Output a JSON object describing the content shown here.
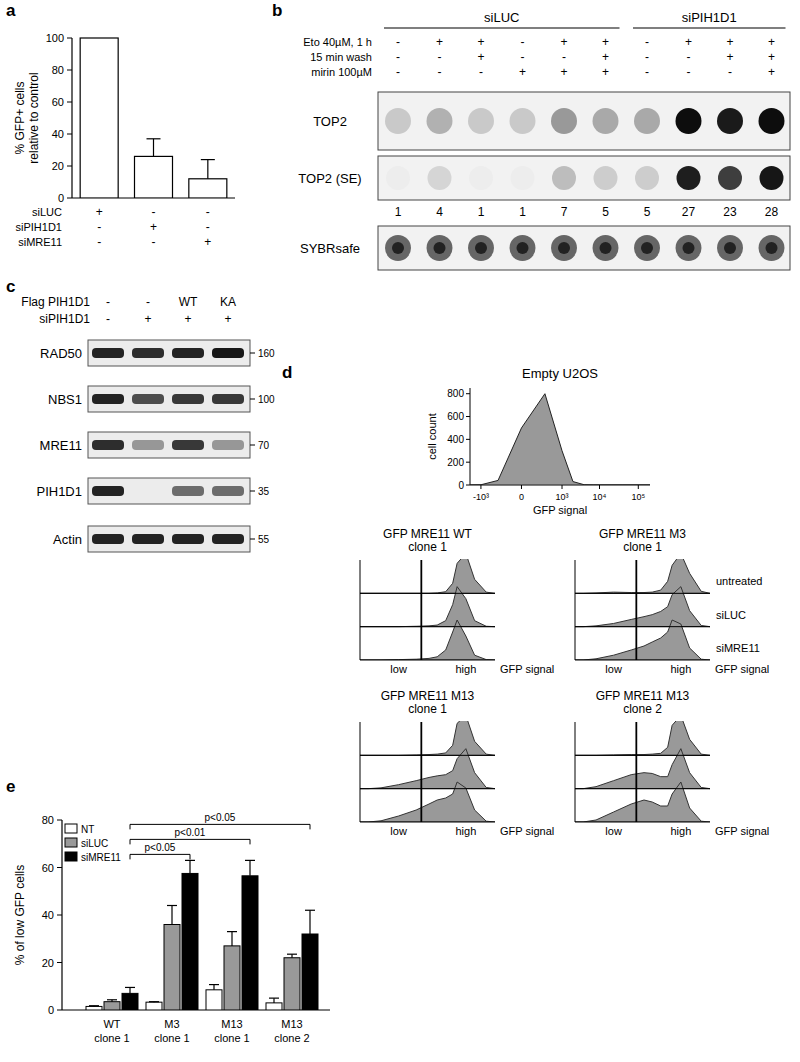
{
  "chart_data": [
    {
      "type": "bar",
      "panel": "a",
      "y_label": [
        "% GFP+ cells",
        "relative to control"
      ],
      "categories": [
        null,
        null,
        null
      ],
      "conditions": [
        {
          "label": "siLUC",
          "signs": [
            "+",
            "-",
            "-"
          ]
        },
        {
          "label": "siPIH1D1",
          "signs": [
            "-",
            "+",
            "-"
          ]
        },
        {
          "label": "siMRE11",
          "signs": [
            "-",
            "-",
            "+"
          ]
        }
      ],
      "values": [
        100,
        26,
        12
      ],
      "errors": [
        null,
        11,
        12
      ],
      "color": "#ffffff",
      "ylim": [
        0,
        100
      ],
      "yticks": [
        0,
        20,
        40,
        60,
        80,
        100
      ]
    },
    {
      "type": "area",
      "panel": "d",
      "title": "Empty U2OS",
      "x_label": "GFP signal",
      "y_label": "cell count",
      "log": "x",
      "x": [
        -2000,
        -1000,
        -300,
        0,
        300,
        1000,
        2000,
        4000,
        7000,
        10000,
        20000,
        40000,
        100000,
        200000
      ],
      "values": [
        0,
        2,
        40,
        500,
        800,
        300,
        30,
        2,
        0,
        0,
        0,
        0,
        0,
        0
      ],
      "color": "#999999",
      "xlim": [
        -2000,
        200000
      ],
      "xticks": [
        {
          "value": -1000,
          "label": "-10³"
        },
        {
          "value": 0,
          "label": "0"
        },
        {
          "value": 1000,
          "label": "10³"
        },
        {
          "value": 10000,
          "label": "10⁴"
        },
        {
          "value": 100000,
          "label": "10⁵"
        }
      ],
      "ylim": [
        0,
        850
      ],
      "yticks": [
        0,
        200,
        400,
        600,
        800
      ]
    },
    {
      "type": "ridgeline",
      "title": [
        "GFP MRE11 WT",
        "clone 1"
      ],
      "x_label": "GFP signal",
      "log": "x",
      "color": "#999999",
      "x": [
        -2000,
        -1000,
        -300,
        0,
        300,
        1000,
        2000,
        4000,
        7000,
        10000,
        20000,
        40000,
        100000,
        200000
      ],
      "series": [
        {
          "values": [
            0,
            0,
            0,
            0,
            0,
            0,
            1,
            4,
            25,
            75,
            100,
            35,
            3,
            0
          ]
        },
        {
          "values": [
            0,
            0,
            0,
            0,
            1,
            2,
            4,
            15,
            55,
            100,
            70,
            15,
            1,
            0
          ]
        },
        {
          "values": [
            0,
            0,
            0,
            1,
            2,
            4,
            8,
            25,
            70,
            100,
            60,
            12,
            1,
            0
          ]
        }
      ],
      "threshold": 500,
      "xlim": [
        -2000,
        200000
      ],
      "xticks": [
        {
          "value": 0,
          "label": "low"
        },
        {
          "value": 20000,
          "label": "high"
        }
      ],
      "ylim": [
        0,
        100
      ]
    },
    {
      "type": "ridgeline",
      "title": [
        "GFP MRE11 M3",
        "clone 1"
      ],
      "x_label": "GFP signal",
      "log": "x",
      "color": "#999999",
      "x": [
        -2000,
        -1000,
        -300,
        0,
        300,
        1000,
        2000,
        4000,
        7000,
        10000,
        20000,
        40000,
        100000,
        200000
      ],
      "series": [
        {
          "name": "untreated",
          "values": [
            0,
            0,
            1,
            3,
            2,
            2,
            3,
            8,
            30,
            70,
            100,
            50,
            5,
            0
          ]
        },
        {
          "name": "siLUC",
          "values": [
            0,
            0,
            2,
            8,
            18,
            25,
            30,
            38,
            50,
            80,
            100,
            40,
            3,
            0
          ]
        },
        {
          "name": "siMRE11",
          "values": [
            0,
            0,
            3,
            12,
            25,
            35,
            45,
            55,
            70,
            100,
            90,
            30,
            2,
            0
          ]
        }
      ],
      "threshold": 500,
      "xlim": [
        -2000,
        200000
      ],
      "xticks": [
        {
          "value": 0,
          "label": "low"
        },
        {
          "value": 20000,
          "label": "high"
        }
      ],
      "ylim": [
        0,
        100
      ]
    },
    {
      "type": "ridgeline",
      "title": [
        "GFP MRE11 M13",
        "clone 1"
      ],
      "x_label": "GFP signal",
      "log": "x",
      "color": "#999999",
      "x": [
        -2000,
        -1000,
        -300,
        0,
        300,
        1000,
        2000,
        4000,
        7000,
        10000,
        20000,
        40000,
        100000,
        200000
      ],
      "series": [
        {
          "values": [
            0,
            0,
            0,
            0,
            1,
            2,
            3,
            6,
            25,
            80,
            100,
            35,
            3,
            0
          ]
        },
        {
          "values": [
            0,
            0,
            2,
            10,
            20,
            28,
            32,
            35,
            45,
            75,
            100,
            40,
            3,
            0
          ]
        },
        {
          "values": [
            0,
            0,
            3,
            15,
            30,
            45,
            55,
            60,
            70,
            100,
            85,
            30,
            2,
            0
          ]
        }
      ],
      "threshold": 500,
      "xlim": [
        -2000,
        200000
      ],
      "xticks": [
        {
          "value": 0,
          "label": "low"
        },
        {
          "value": 20000,
          "label": "high"
        }
      ],
      "ylim": [
        0,
        100
      ]
    },
    {
      "type": "ridgeline",
      "title": [
        "GFP MRE11 M13",
        "clone 2"
      ],
      "x_label": "GFP signal",
      "log": "x",
      "color": "#999999",
      "x": [
        -2000,
        -1000,
        -300,
        0,
        300,
        1000,
        2000,
        4000,
        7000,
        10000,
        20000,
        40000,
        100000,
        200000
      ],
      "series": [
        {
          "values": [
            0,
            0,
            0,
            1,
            2,
            2,
            3,
            5,
            20,
            75,
            100,
            40,
            3,
            0
          ]
        },
        {
          "values": [
            0,
            0,
            5,
            20,
            35,
            40,
            38,
            30,
            30,
            60,
            100,
            40,
            3,
            0
          ]
        },
        {
          "values": [
            0,
            0,
            5,
            25,
            45,
            55,
            50,
            40,
            40,
            70,
            100,
            35,
            2,
            0
          ]
        }
      ],
      "threshold": 500,
      "xlim": [
        -2000,
        200000
      ],
      "xticks": [
        {
          "value": 0,
          "label": "low"
        },
        {
          "value": 20000,
          "label": "high"
        }
      ],
      "ylim": [
        0,
        100
      ]
    },
    {
      "type": "bar",
      "panel": "e",
      "y_label": "% of low GFP cells",
      "categories": [
        "WT clone 1",
        "M3 clone 1",
        "M13 clone 1",
        "M13 clone 2"
      ],
      "series": [
        {
          "name": "NT",
          "color": "#ffffff",
          "values": [
            1.5,
            3.3,
            8.5,
            3
          ],
          "errors": [
            0.3,
            0.2,
            2.2,
            2
          ]
        },
        {
          "name": "siLUC",
          "color": "#999999",
          "values": [
            3.5,
            36,
            27,
            22
          ],
          "errors": [
            0.8,
            8,
            6,
            1.5
          ]
        },
        {
          "name": "siMRE11",
          "color": "#000000",
          "values": [
            7,
            57.5,
            56.5,
            32
          ],
          "errors": [
            2.5,
            5.5,
            6.5,
            10
          ]
        }
      ],
      "legend": "top-left",
      "ylim": [
        0,
        80
      ],
      "yticks": [
        0,
        20,
        40,
        60,
        80
      ],
      "annotations": [
        {
          "text": "p<0.05",
          "series": "siMRE11",
          "from": "WT clone 1",
          "to": "M3 clone 1"
        },
        {
          "text": "p<0.01",
          "series": "siMRE11",
          "from": "WT clone 1",
          "to": "M13 clone 1"
        },
        {
          "text": "p<0.05",
          "series": "siMRE11",
          "from": "WT clone 1",
          "to": "M13 clone 2"
        }
      ]
    }
  ],
  "blots": [
    {
      "panel": "b",
      "groups": [
        {
          "label": "siLUC",
          "lanes": [
            0,
            5
          ]
        },
        {
          "label": "siPIH1D1",
          "lanes": [
            6,
            9
          ]
        }
      ],
      "rows": [
        {
          "label": "Eto 40µM, 1 h",
          "signs": [
            "-",
            "+",
            "+",
            "-",
            "+",
            "+",
            "-",
            "+",
            "+",
            "+"
          ]
        },
        {
          "label": "15 min wash",
          "signs": [
            "-",
            "-",
            "+",
            "-",
            "-",
            "+",
            "-",
            "-",
            "+",
            "+"
          ]
        },
        {
          "label": "mirin 100µM",
          "signs": [
            "-",
            "-",
            "-",
            "+",
            "+",
            "+",
            "-",
            "-",
            "-",
            "+"
          ]
        }
      ],
      "blots": [
        {
          "label": "TOP2"
        },
        {
          "label": "TOP2 (SE)"
        }
      ],
      "quantification": [
        1,
        4,
        1,
        1,
        7,
        5,
        5,
        27,
        23,
        28
      ],
      "stain": "SYBRsafe"
    },
    {
      "panel": "c",
      "rows": [
        {
          "label": "Flag PIH1D1",
          "signs": [
            "-",
            "-",
            "WT",
            "KA"
          ]
        },
        {
          "label": "siPIH1D1",
          "signs": [
            "-",
            "+",
            "+",
            "+"
          ]
        }
      ],
      "bands": [
        {
          "label": "RAD50",
          "mw": 160,
          "intensities": [
            0.95,
            0.9,
            0.95,
            1
          ]
        },
        {
          "label": "NBS1",
          "mw": 100,
          "intensities": [
            0.95,
            0.75,
            0.85,
            0.85
          ]
        },
        {
          "label": "MRE11",
          "mw": 70,
          "intensities": [
            0.9,
            0.4,
            0.85,
            0.4
          ]
        },
        {
          "label": "PIH1D1",
          "mw": 35,
          "intensities": [
            0.95,
            0,
            0.6,
            0.6
          ]
        },
        {
          "label": "Actin",
          "mw": 55,
          "intensities": [
            0.95,
            0.95,
            0.95,
            0.95
          ]
        }
      ]
    }
  ]
}
